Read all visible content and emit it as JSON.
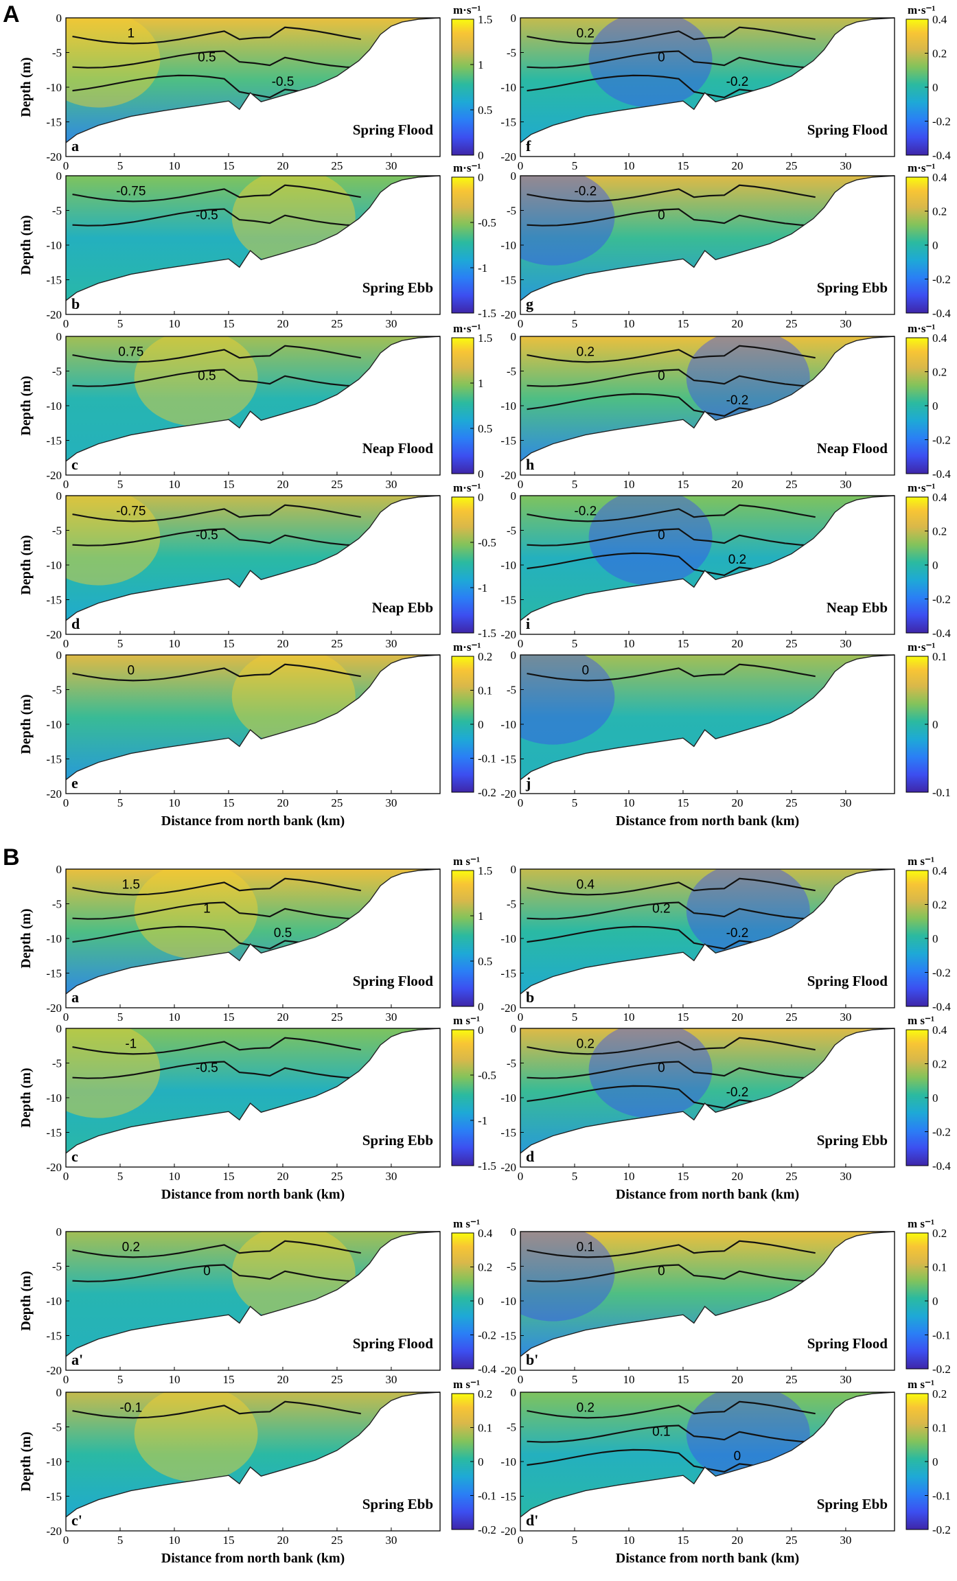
{
  "sections": [
    "A",
    "B"
  ],
  "colors": {
    "frame": "#000000",
    "contour": "#111111",
    "colormap": [
      "#3e26a8",
      "#3c4ff0",
      "#2a7ff5",
      "#1ea9d6",
      "#2bbaa0",
      "#83c35b",
      "#d9b84a",
      "#f8c534",
      "#f9fb0e"
    ]
  },
  "chart_data": [
    {
      "id": "A-a",
      "type": "heatmap",
      "panel_label": "a",
      "title": "Spring Flood",
      "ylabel": "Depth (m)",
      "xlabel": "",
      "unit": "m·s⁻¹",
      "xlim": [
        0,
        34.5
      ],
      "ylim": [
        -20,
        0
      ],
      "xticks": [
        0,
        5,
        10,
        15,
        20,
        25,
        30
      ],
      "yticks": [
        0,
        -5,
        -10,
        -15,
        -20
      ],
      "clim": [
        0,
        1.5
      ],
      "cticks": [
        "1.5",
        "1",
        "0.5",
        "0"
      ],
      "contours": [
        {
          "label": "1",
          "level": 1.0
        },
        {
          "label": "0.5",
          "level": 0.5
        },
        {
          "label": "-0.5",
          "level": -0.5
        }
      ]
    },
    {
      "id": "A-f",
      "type": "heatmap",
      "panel_label": "f",
      "title": "Spring Flood",
      "ylabel": "",
      "xlabel": "",
      "unit": "m·s⁻¹",
      "xlim": [
        0,
        34.5
      ],
      "ylim": [
        -20,
        0
      ],
      "xticks": [
        0,
        5,
        10,
        15,
        20,
        25,
        30
      ],
      "yticks": [
        0,
        -5,
        -10,
        -15,
        -20
      ],
      "clim": [
        -0.4,
        0.4
      ],
      "cticks": [
        "0.4",
        "0.2",
        "0",
        "-0.2",
        "-0.4"
      ],
      "contours": [
        {
          "label": "0.2",
          "level": 0.2
        },
        {
          "label": "0",
          "level": 0
        },
        {
          "label": "-0.2",
          "level": -0.2
        }
      ]
    },
    {
      "id": "A-b",
      "type": "heatmap",
      "panel_label": "b",
      "title": "Spring Ebb",
      "ylabel": "Depth (m)",
      "xlabel": "",
      "unit": "m·s⁻¹",
      "xlim": [
        0,
        34.5
      ],
      "ylim": [
        -20,
        0
      ],
      "xticks": [
        0,
        5,
        10,
        15,
        20,
        25,
        30
      ],
      "yticks": [
        0,
        -5,
        -10,
        -15,
        -20
      ],
      "clim": [
        -1.5,
        0
      ],
      "cticks": [
        "0",
        "-0.5",
        "-1",
        "-1.5"
      ],
      "contours": [
        {
          "label": "-0.75",
          "level": -0.75
        },
        {
          "label": "-0.5",
          "level": -0.5
        }
      ]
    },
    {
      "id": "A-g",
      "type": "heatmap",
      "panel_label": "g",
      "title": "Spring Ebb",
      "ylabel": "",
      "xlabel": "",
      "unit": "m·s⁻¹",
      "xlim": [
        0,
        34.5
      ],
      "ylim": [
        -20,
        0
      ],
      "xticks": [
        0,
        5,
        10,
        15,
        20,
        25,
        30
      ],
      "yticks": [
        0,
        -5,
        -10,
        -15,
        -20
      ],
      "clim": [
        -0.4,
        0.4
      ],
      "cticks": [
        "0.4",
        "0.2",
        "0",
        "-0.2",
        "-0.4"
      ],
      "contours": [
        {
          "label": "-0.2",
          "level": -0.2
        },
        {
          "label": "0",
          "level": 0
        }
      ]
    },
    {
      "id": "A-c",
      "type": "heatmap",
      "panel_label": "c",
      "title": "Neap Flood",
      "ylabel": "Depth (m)",
      "xlabel": "",
      "unit": "m·s⁻¹",
      "xlim": [
        0,
        34.5
      ],
      "ylim": [
        -20,
        0
      ],
      "xticks": [
        0,
        5,
        10,
        15,
        20,
        25,
        30
      ],
      "yticks": [
        0,
        -5,
        -10,
        -15,
        -20
      ],
      "clim": [
        0,
        1.5
      ],
      "cticks": [
        "1.5",
        "1",
        "0.5",
        "0"
      ],
      "contours": [
        {
          "label": "0.75",
          "level": 0.75
        },
        {
          "label": "0.5",
          "level": 0.5
        }
      ]
    },
    {
      "id": "A-h",
      "type": "heatmap",
      "panel_label": "h",
      "title": "Neap Flood",
      "ylabel": "",
      "xlabel": "",
      "unit": "m·s⁻¹",
      "xlim": [
        0,
        34.5
      ],
      "ylim": [
        -20,
        0
      ],
      "xticks": [
        0,
        5,
        10,
        15,
        20,
        25,
        30
      ],
      "yticks": [
        0,
        -5,
        -10,
        -15,
        -20
      ],
      "clim": [
        -0.4,
        0.4
      ],
      "cticks": [
        "0.4",
        "0.2",
        "0",
        "-0.2",
        "-0.4"
      ],
      "contours": [
        {
          "label": "0.2",
          "level": 0.2
        },
        {
          "label": "0",
          "level": 0
        },
        {
          "label": "-0.2",
          "level": -0.2
        }
      ]
    },
    {
      "id": "A-d",
      "type": "heatmap",
      "panel_label": "d",
      "title": "Neap Ebb",
      "ylabel": "Depth (m)",
      "xlabel": "",
      "unit": "m·s⁻¹",
      "xlim": [
        0,
        34.5
      ],
      "ylim": [
        -20,
        0
      ],
      "xticks": [
        0,
        5,
        10,
        15,
        20,
        25,
        30
      ],
      "yticks": [
        0,
        -5,
        -10,
        -15,
        -20
      ],
      "clim": [
        -1.5,
        0
      ],
      "cticks": [
        "0",
        "-0.5",
        "-1",
        "-1.5"
      ],
      "contours": [
        {
          "label": "-0.75",
          "level": -0.75
        },
        {
          "label": "-0.5",
          "level": -0.5
        }
      ]
    },
    {
      "id": "A-i",
      "type": "heatmap",
      "panel_label": "i",
      "title": "Neap Ebb",
      "ylabel": "",
      "xlabel": "",
      "unit": "m·s⁻¹",
      "xlim": [
        0,
        34.5
      ],
      "ylim": [
        -20,
        0
      ],
      "xticks": [
        0,
        5,
        10,
        15,
        20,
        25,
        30
      ],
      "yticks": [
        0,
        -5,
        -10,
        -15,
        -20
      ],
      "clim": [
        -0.4,
        0.4
      ],
      "cticks": [
        "0.4",
        "0.2",
        "0",
        "-0.2",
        "-0.4"
      ],
      "contours": [
        {
          "label": "-0.2",
          "level": -0.2
        },
        {
          "label": "0",
          "level": 0
        },
        {
          "label": "0.2",
          "level": 0.2
        }
      ]
    },
    {
      "id": "A-e",
      "type": "heatmap",
      "panel_label": "e",
      "title": "",
      "ylabel": "Depth (m)",
      "xlabel": "Distance from north bank (km)",
      "unit": "m·s⁻¹",
      "xlim": [
        0,
        34.5
      ],
      "ylim": [
        -20,
        0
      ],
      "xticks": [
        0,
        5,
        10,
        15,
        20,
        25,
        30
      ],
      "yticks": [
        0,
        -5,
        -10,
        -15,
        -20
      ],
      "clim": [
        -0.2,
        0.2
      ],
      "cticks": [
        "0.2",
        "0.1",
        "0",
        "-0.1",
        "-0.2"
      ],
      "contours": [
        {
          "label": "0",
          "level": 0
        }
      ]
    },
    {
      "id": "A-j",
      "type": "heatmap",
      "panel_label": "j",
      "title": "",
      "ylabel": "",
      "xlabel": "Distance from north bank (km)",
      "unit": "m·s⁻¹",
      "xlim": [
        0,
        34.5
      ],
      "ylim": [
        -20,
        0
      ],
      "xticks": [
        0,
        5,
        10,
        15,
        20,
        25,
        30
      ],
      "yticks": [
        0,
        -5,
        -10,
        -15,
        -20
      ],
      "clim": [
        -0.1,
        0.1
      ],
      "cticks": [
        "0.1",
        "0",
        "-0.1"
      ],
      "contours": [
        {
          "label": "0",
          "level": 0
        }
      ]
    },
    {
      "id": "B-a",
      "type": "heatmap",
      "panel_label": "a",
      "title": "Spring Flood",
      "ylabel": "Depth (m)",
      "xlabel": "",
      "unit": "m s⁻¹",
      "xlim": [
        0,
        34.5
      ],
      "ylim": [
        -20,
        0
      ],
      "xticks": [
        0,
        5,
        10,
        15,
        20,
        25,
        30
      ],
      "yticks": [
        0,
        -5,
        -10,
        -15,
        -20
      ],
      "clim": [
        0,
        1.5
      ],
      "cticks": [
        "1.5",
        "1",
        "0.5",
        "0"
      ],
      "contours": [
        {
          "label": "1.5",
          "level": 1.5
        },
        {
          "label": "1",
          "level": 1.0
        },
        {
          "label": "0.5",
          "level": 0.5
        }
      ]
    },
    {
      "id": "B-b",
      "type": "heatmap",
      "panel_label": "b",
      "title": "Spring Flood",
      "ylabel": "",
      "xlabel": "",
      "unit": "m s⁻¹",
      "xlim": [
        0,
        34.5
      ],
      "ylim": [
        -20,
        0
      ],
      "xticks": [
        0,
        5,
        10,
        15,
        20,
        25,
        30
      ],
      "yticks": [
        0,
        -5,
        -10,
        -15,
        -20
      ],
      "clim": [
        -0.4,
        0.4
      ],
      "cticks": [
        "0.4",
        "0.2",
        "0",
        "-0.2",
        "-0.4"
      ],
      "contours": [
        {
          "label": "0.4",
          "level": 0.4
        },
        {
          "label": "0.2",
          "level": 0.2
        },
        {
          "label": "-0.2",
          "level": -0.2
        }
      ]
    },
    {
      "id": "B-c",
      "type": "heatmap",
      "panel_label": "c",
      "title": "Spring Ebb",
      "ylabel": "Depth (m)",
      "xlabel": "Distance from north bank (km)",
      "unit": "m s⁻¹",
      "xlim": [
        0,
        34.5
      ],
      "ylim": [
        -20,
        0
      ],
      "xticks": [
        0,
        5,
        10,
        15,
        20,
        25,
        30
      ],
      "yticks": [
        0,
        -5,
        -10,
        -15,
        -20
      ],
      "clim": [
        -1.5,
        0
      ],
      "cticks": [
        "0",
        "-0.5",
        "-1",
        "-1.5"
      ],
      "contours": [
        {
          "label": "-1",
          "level": -1.0
        },
        {
          "label": "-0.5",
          "level": -0.5
        }
      ]
    },
    {
      "id": "B-d",
      "type": "heatmap",
      "panel_label": "d",
      "title": "Spring Ebb",
      "ylabel": "",
      "xlabel": "Distance from north bank (km)",
      "unit": "m s⁻¹",
      "xlim": [
        0,
        34.5
      ],
      "ylim": [
        -20,
        0
      ],
      "xticks": [
        0,
        5,
        10,
        15,
        20,
        25,
        30
      ],
      "yticks": [
        0,
        -5,
        -10,
        -15,
        -20
      ],
      "clim": [
        -0.4,
        0.4
      ],
      "cticks": [
        "0.4",
        "0.2",
        "0",
        "-0.2",
        "-0.4"
      ],
      "contours": [
        {
          "label": "0.2",
          "level": 0.2
        },
        {
          "label": "0",
          "level": 0
        },
        {
          "label": "-0.2",
          "level": -0.2
        }
      ]
    },
    {
      "id": "B-a2",
      "type": "heatmap",
      "panel_label": "a'",
      "title": "Spring Flood",
      "ylabel": "Depth (m)",
      "xlabel": "",
      "unit": "m s⁻¹",
      "xlim": [
        0,
        34.5
      ],
      "ylim": [
        -20,
        0
      ],
      "xticks": [
        0,
        5,
        10,
        15,
        20,
        25,
        30
      ],
      "yticks": [
        0,
        -5,
        -10,
        -15,
        -20
      ],
      "clim": [
        -0.4,
        0.4
      ],
      "cticks": [
        "0.4",
        "0.2",
        "0",
        "-0.2",
        "-0.4"
      ],
      "contours": [
        {
          "label": "0.2",
          "level": 0.2
        },
        {
          "label": "0",
          "level": 0
        }
      ]
    },
    {
      "id": "B-b2",
      "type": "heatmap",
      "panel_label": "b'",
      "title": "Spring Flood",
      "ylabel": "",
      "xlabel": "",
      "unit": "m s⁻¹",
      "xlim": [
        0,
        34.5
      ],
      "ylim": [
        -20,
        0
      ],
      "xticks": [
        0,
        5,
        10,
        15,
        20,
        25,
        30
      ],
      "yticks": [
        0,
        -5,
        -10,
        -15,
        -20
      ],
      "clim": [
        -0.2,
        0.2
      ],
      "cticks": [
        "0.2",
        "0.1",
        "0",
        "-0.1",
        "-0.2"
      ],
      "contours": [
        {
          "label": "0.1",
          "level": 0.1
        },
        {
          "label": "0",
          "level": 0
        }
      ]
    },
    {
      "id": "B-c2",
      "type": "heatmap",
      "panel_label": "c'",
      "title": "Spring Ebb",
      "ylabel": "Depth (m)",
      "xlabel": "Distance from north bank (km)",
      "unit": "m s⁻¹",
      "xlim": [
        0,
        34.5
      ],
      "ylim": [
        -20,
        0
      ],
      "xticks": [
        0,
        5,
        10,
        15,
        20,
        25,
        30
      ],
      "yticks": [
        0,
        -5,
        -10,
        -15,
        -20
      ],
      "clim": [
        -0.2,
        0.2
      ],
      "cticks": [
        "0.2",
        "0.1",
        "0",
        "-0.1",
        "-0.2"
      ],
      "contours": [
        {
          "label": "-0.1",
          "level": -0.1
        }
      ]
    },
    {
      "id": "B-d2",
      "type": "heatmap",
      "panel_label": "d'",
      "title": "Spring Ebb",
      "ylabel": "",
      "xlabel": "Distance from north bank (km)",
      "unit": "m s⁻¹",
      "xlim": [
        0,
        34.5
      ],
      "ylim": [
        -20,
        0
      ],
      "xticks": [
        0,
        5,
        10,
        15,
        20,
        25,
        30
      ],
      "yticks": [
        0,
        -5,
        -10,
        -15,
        -20
      ],
      "clim": [
        -0.2,
        0.2
      ],
      "cticks": [
        "0.2",
        "0.1",
        "0",
        "-0.1",
        "-0.2"
      ],
      "contours": [
        {
          "label": "0.2",
          "level": 0.2
        },
        {
          "label": "0.1",
          "level": 0.1
        },
        {
          "label": "0",
          "level": 0
        }
      ]
    }
  ],
  "bathymetry_km_m": [
    [
      0,
      -18
    ],
    [
      1,
      -16.8
    ],
    [
      3,
      -15.5
    ],
    [
      6,
      -14.2
    ],
    [
      9,
      -13.4
    ],
    [
      12,
      -12.7
    ],
    [
      15,
      -12.0
    ],
    [
      16,
      -13.2
    ],
    [
      17,
      -10.8
    ],
    [
      18,
      -12.1
    ],
    [
      20,
      -11.2
    ],
    [
      23,
      -9.8
    ],
    [
      25,
      -8.4
    ],
    [
      27,
      -6.2
    ],
    [
      28,
      -4.6
    ],
    [
      29,
      -2.4
    ],
    [
      30,
      -1.2
    ],
    [
      31,
      -0.6
    ],
    [
      32.5,
      -0.2
    ],
    [
      34.5,
      0
    ]
  ]
}
